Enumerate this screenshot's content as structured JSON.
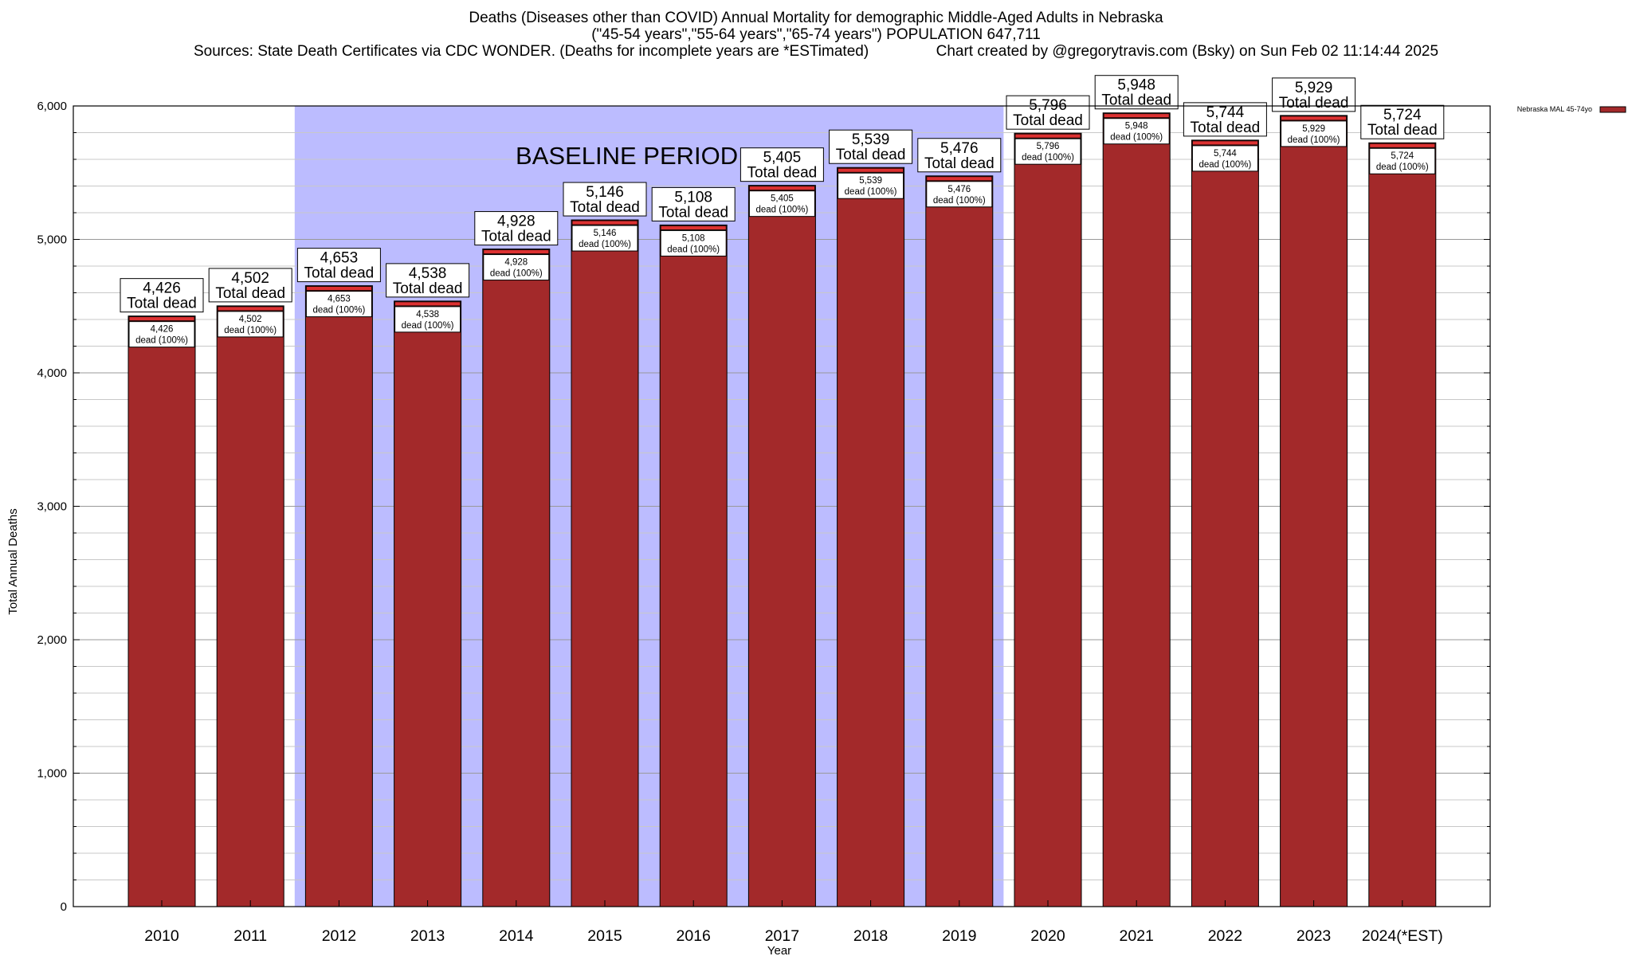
{
  "header": {
    "title_line1": "Deaths (Diseases other than COVID) Annual Mortality for demographic Middle-Aged Adults in Nebraska",
    "title_line2": "(\"45-54 years\",\"55-64 years\",\"65-74 years\") POPULATION 647,711",
    "title_line3": "Sources: State Death Certificates via CDC WONDER. (Deaths for incomplete years are *ESTimated)                Chart created by @gregorytravis.com (Bsky) on Sun Feb 02 11:14:44 2025"
  },
  "chart_data": {
    "type": "bar",
    "xlabel": "Year",
    "ylabel": "Total Annual Deaths",
    "ylim": [
      0,
      6000
    ],
    "y_ticks": [
      0,
      1000,
      2000,
      3000,
      4000,
      5000,
      6000
    ],
    "y_tick_labels": [
      "0",
      "1,000",
      "2,000",
      "3,000",
      "4,000",
      "5,000",
      "6,000"
    ],
    "grid": true,
    "legend_position": "top-right",
    "categories": [
      "2010",
      "2011",
      "2012",
      "2013",
      "2014",
      "2015",
      "2016",
      "2017",
      "2018",
      "2019",
      "2020",
      "2021",
      "2022",
      "2023",
      "2024(*EST)"
    ],
    "series": [
      {
        "name": "Nebraska MAL 45-74yo",
        "color": "#a3292a",
        "values": [
          4426,
          4502,
          4653,
          4538,
          4928,
          5146,
          5108,
          5405,
          5539,
          5476,
          5796,
          5948,
          5744,
          5929,
          5724
        ]
      }
    ],
    "value_labels": [
      "4,426",
      "4,502",
      "4,653",
      "4,538",
      "4,928",
      "5,146",
      "5,108",
      "5,405",
      "5,539",
      "5,476",
      "5,796",
      "5,948",
      "5,744",
      "5,929",
      "5,724"
    ],
    "total_suffix": "Total dead",
    "inner_suffix": "dead (100%)",
    "baseline": {
      "label": "BASELINE PERIOD",
      "from": "2012",
      "to": "2019",
      "color": "#bcbcff"
    },
    "top_band_color": "#dc3131"
  }
}
